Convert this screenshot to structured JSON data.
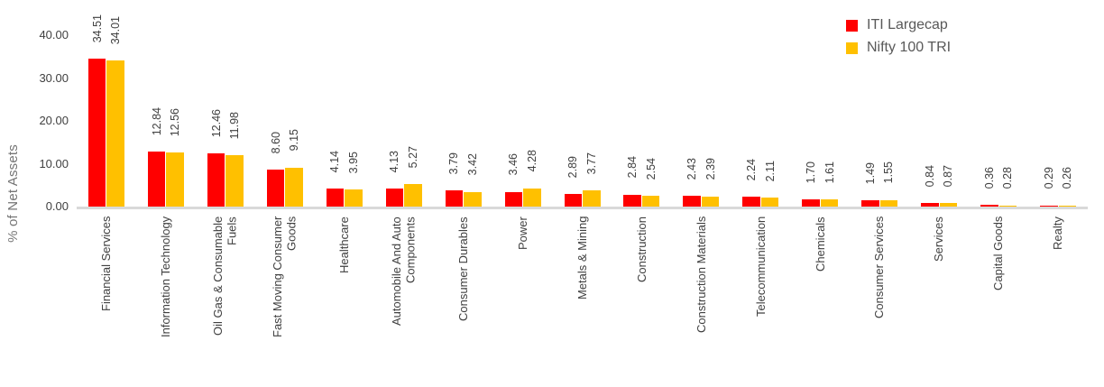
{
  "chart_data": {
    "type": "bar",
    "title": "",
    "xlabel": "",
    "ylabel": "% of Net Assets",
    "ylim": [
      0,
      40
    ],
    "yticks": [
      40,
      30,
      20,
      10,
      0
    ],
    "ytick_labels": [
      "40.00",
      "30.00",
      "20.00",
      "10.00",
      "0.00"
    ],
    "grid": false,
    "legend_position": "top-right",
    "value_labels": true,
    "value_label_rotation": 90,
    "categories": [
      "Financial Services",
      "Information Technology",
      "Oil Gas & Consumable\nFuels",
      "Fast Moving Consumer\nGoods",
      "Healthcare",
      "Automobile And Auto\nComponents",
      "Consumer Durables",
      "Power",
      "Metals & Mining",
      "Construction",
      "Construction Materials",
      "Telecommunication",
      "Chemicals",
      "Consumer Services",
      "Services",
      "Capital Goods",
      "Realty"
    ],
    "series": [
      {
        "name": "ITI Largecap",
        "color": "#ff0000",
        "values": [
          34.51,
          12.84,
          12.46,
          8.6,
          4.14,
          4.13,
          3.79,
          3.46,
          2.89,
          2.84,
          2.43,
          2.24,
          1.7,
          1.49,
          0.84,
          0.36,
          0.29
        ]
      },
      {
        "name": "Nifty 100 TRI",
        "color": "#ffc000",
        "values": [
          34.01,
          12.56,
          11.98,
          9.15,
          3.95,
          5.27,
          3.42,
          4.28,
          3.77,
          2.54,
          2.39,
          2.11,
          1.61,
          1.55,
          0.87,
          0.28,
          0.26
        ]
      }
    ],
    "colors": {
      "axis_line": "#d9d9d9",
      "tick_text": "#404040",
      "label_text": "#404040",
      "legend_text": "#595959",
      "axis_title_text": "#757575"
    }
  }
}
